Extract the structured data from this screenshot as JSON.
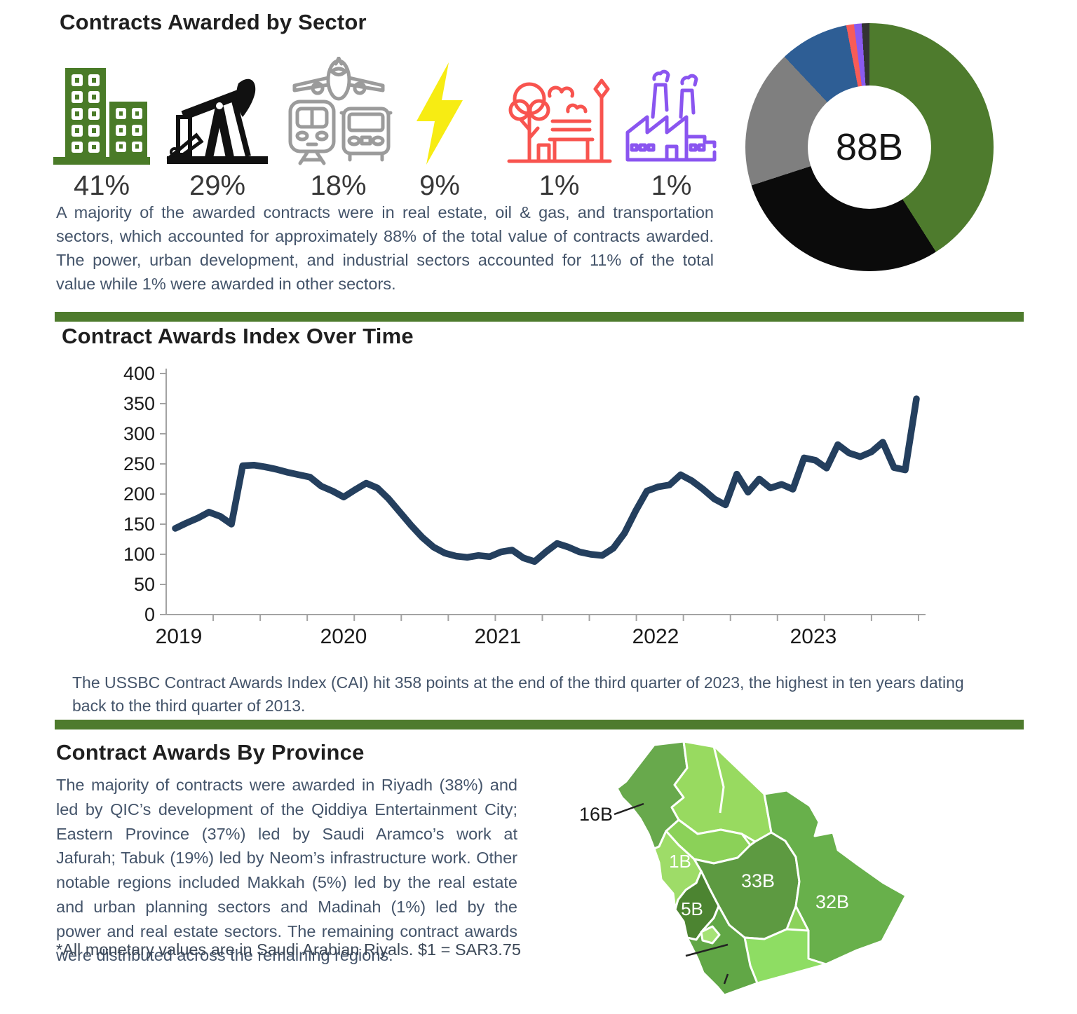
{
  "sector_section": {
    "title": "Contracts Awarded by Sector",
    "sectors": [
      {
        "icon": "buildings-icon",
        "sector": "real-estate",
        "percent": "41%"
      },
      {
        "icon": "oil-pump-icon",
        "sector": "oil-and-gas",
        "percent": "29%"
      },
      {
        "icon": "transportation-icon",
        "sector": "transportation",
        "percent": "18%"
      },
      {
        "icon": "lightning-icon",
        "sector": "power",
        "percent": "9%"
      },
      {
        "icon": "park-icon",
        "sector": "urban-development",
        "percent": "1%"
      },
      {
        "icon": "factory-icon",
        "sector": "industrial",
        "percent": "1%"
      }
    ],
    "paragraph": "A majority of the awarded contracts were in real estate, oil & gas, and transportation sectors, which accounted for approximately 88% of the total value of contracts awarded. The power, urban development, and industrial sectors accounted for 11% of the total value while 1% were awarded in other sectors."
  },
  "cai_section": {
    "title": "Contract Awards Index Over Time",
    "caption": "The USSBC Contract Awards Index (CAI) hit 358 points at the end of the third quarter of 2023, the highest in ten years dating back to the third quarter of 2013."
  },
  "province_section": {
    "title": "Contract Awards By Province",
    "paragraph": "The majority of contracts were awarded in Riyadh (38%) and led by QIC’s development of the Qiddiya Entertainment City; Eastern Province (37%) led by Saudi Aramco’s work at Jafurah; Tabuk (19%) led by Neom’s infrastructure work. Other notable regions included Makkah (5%) led by the real estate and urban planning sectors and Madinah (1%) led by the power and real estate sectors. The remaining contract awards were distributed across the remaining regions.",
    "footnote": "*All monetary values are in Saudi Arabian Riyals. $1 = SAR3.75"
  },
  "chart_data": [
    {
      "type": "pie",
      "subtype": "donut",
      "center_label": "88B",
      "title": "Contracts Awarded by Sector",
      "start_angle_deg": 0,
      "segments": [
        {
          "name": "real-estate",
          "value": 41,
          "color": "#4e7b2d"
        },
        {
          "name": "oil-and-gas",
          "value": 29,
          "color": "#0b0b0b"
        },
        {
          "name": "transportation",
          "value": 18,
          "color": "#7f7f7f"
        },
        {
          "name": "power",
          "value": 9,
          "color": "#2e5e95"
        },
        {
          "name": "urban-development",
          "value": 1,
          "color": "#f85c57"
        },
        {
          "name": "industrial",
          "value": 1,
          "color": "#8a5af0"
        },
        {
          "name": "other",
          "value": 1,
          "color": "#333333"
        }
      ]
    },
    {
      "type": "line",
      "title": "Contract Awards Index Over Time",
      "x_labels": [
        "2019",
        "2020",
        "2021",
        "2022",
        "2023"
      ],
      "x_range_note": "monthly index values, Jan 2019 through Q3 2023; final point = 358",
      "ylim": [
        0,
        400
      ],
      "y_ticks": [
        0,
        50,
        100,
        150,
        200,
        250,
        300,
        350,
        400
      ],
      "line_color": "#243f5e",
      "values": [
        143,
        152,
        160,
        170,
        163,
        150,
        247,
        248,
        245,
        241,
        236,
        232,
        228,
        213,
        205,
        195,
        207,
        218,
        210,
        192,
        170,
        148,
        128,
        112,
        102,
        97,
        95,
        98,
        96,
        104,
        107,
        94,
        88,
        104,
        118,
        112,
        104,
        100,
        98,
        110,
        135,
        172,
        205,
        212,
        215,
        232,
        222,
        208,
        192,
        182,
        233,
        203,
        225,
        210,
        216,
        208,
        260,
        256,
        243,
        282,
        268,
        262,
        270,
        286,
        244,
        240,
        358
      ]
    },
    {
      "type": "heatmap",
      "subtype": "choropleth-map-saudi-arabia",
      "title": "Contract Awards By Province",
      "regions": [
        {
          "name": "Tabuk",
          "value": "16B",
          "share": "19%",
          "color": "#68a94c"
        },
        {
          "name": "Madinah",
          "value": "1B",
          "share": "1%",
          "color": "#9edc68"
        },
        {
          "name": "Riyadh",
          "value": "33B",
          "share": "38%",
          "color": "#5d9a41"
        },
        {
          "name": "Eastern Province",
          "value": "32B",
          "share": "37%",
          "color": "#68b04b"
        },
        {
          "name": "Makkah",
          "value": "5B",
          "share": "5%",
          "color": "#4c8431"
        }
      ]
    }
  ]
}
